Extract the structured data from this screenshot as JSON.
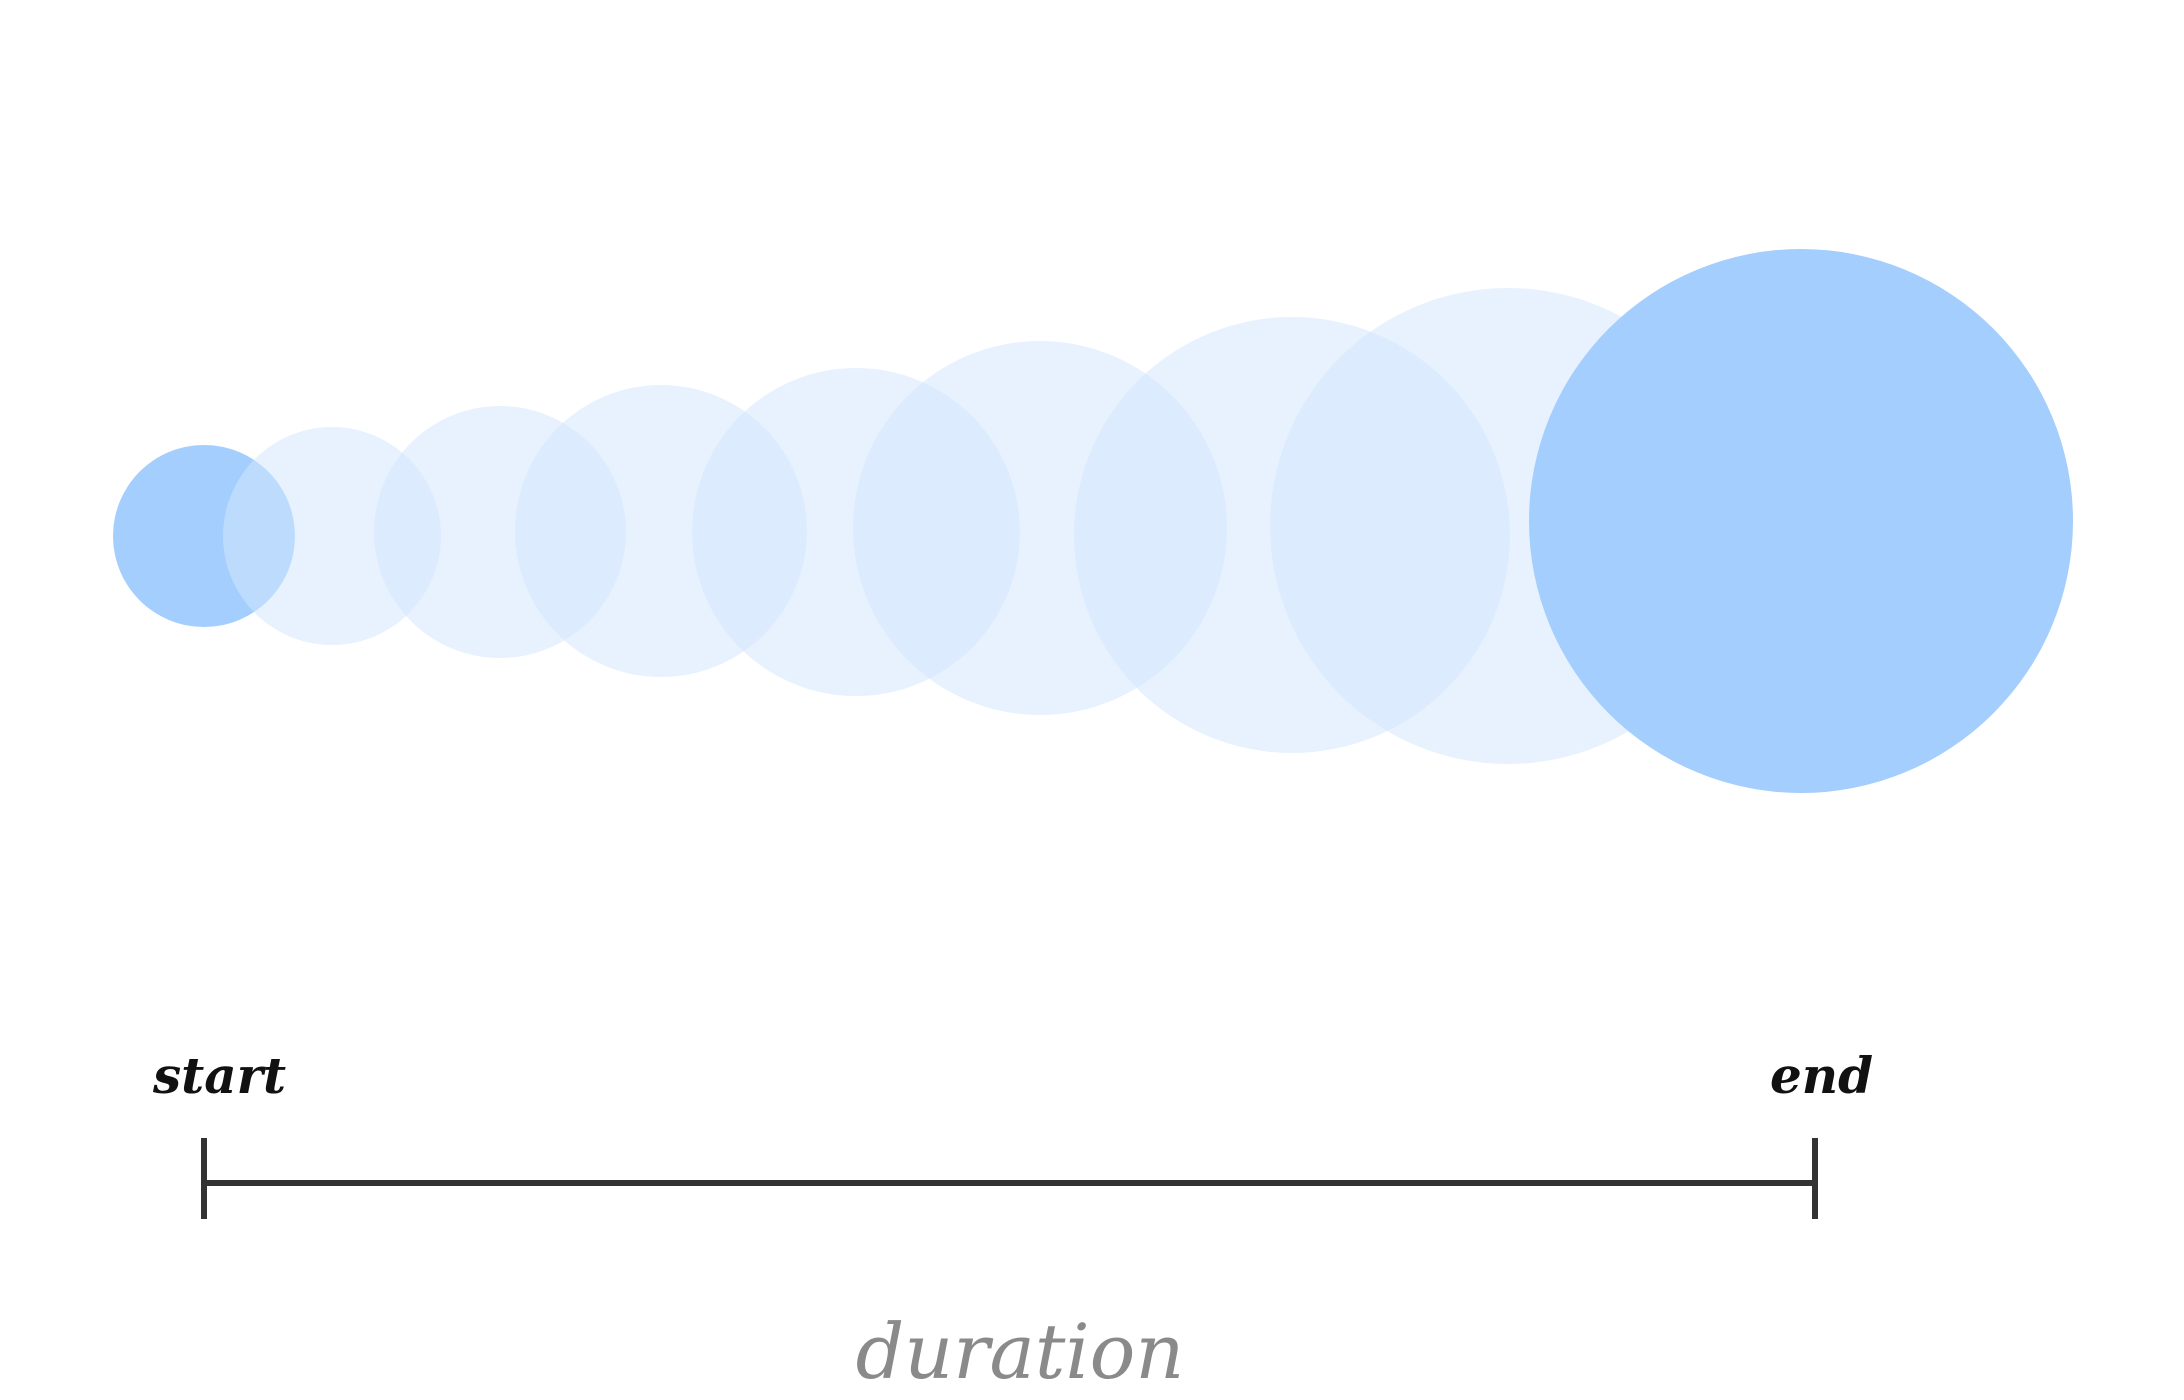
{
  "labels": {
    "start": "start",
    "end": "end",
    "duration": "duration"
  },
  "colors": {
    "endpoint_fill": "#a3cefd",
    "ghost_fill": "#d4e8fd",
    "timeline_stroke": "#333333",
    "label_text": "#111111",
    "duration_text": "#8a8a8a"
  },
  "circle_steps": 9
}
